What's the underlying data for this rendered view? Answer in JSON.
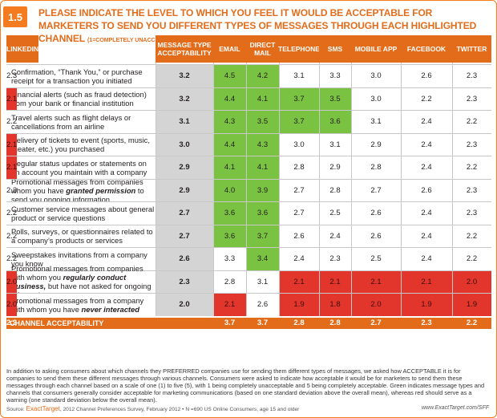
{
  "figure": {
    "number": "1.5",
    "title": "PLEASE INDICATE THE LEVEL TO WHICH YOU FEEL IT WOULD BE ACCEPTABLE FOR MARKETERS TO SEND YOU DIFFERENT TYPES OF MESSAGES THROUGH EACH HIGHLIGHTED CHANNEL",
    "scale_note": "(1=COMPLETELY UNACCEPTABLE, 5=COMPLETELY ACCEPTABLE)"
  },
  "colors": {
    "accent": "#e36c1a",
    "green": "#79c242",
    "red": "#e2352c",
    "gray": "#d4d4d4"
  },
  "chart_data": {
    "type": "table",
    "columns": [
      "MESSAGE TYPE ACCEPTABILITY",
      "EMAIL",
      "DIRECT MAIL",
      "TELEPHONE",
      "SMS",
      "MOBILE APP",
      "FACEBOOK",
      "TWITTER",
      "LINKEDIN"
    ],
    "rows": [
      {
        "label_parts": [
          {
            "t": "Confirmation, “Thank You,” or purchase receipt for a transaction you initiated"
          }
        ],
        "values": [
          "3.2",
          "4.5",
          "4.2",
          "3.1",
          "3.3",
          "3.0",
          "2.6",
          "2.3",
          "2.3"
        ],
        "status": [
          "acc",
          "green",
          "green",
          "",
          "",
          "",
          "",
          "",
          ""
        ]
      },
      {
        "label_parts": [
          {
            "t": "Financial alerts (such as fraud detection) from your bank or financial institution"
          }
        ],
        "values": [
          "3.2",
          "4.4",
          "4.1",
          "3.7",
          "3.5",
          "3.0",
          "2.2",
          "2.3",
          "2.1"
        ],
        "status": [
          "acc",
          "green",
          "green",
          "green",
          "green",
          "",
          "",
          "",
          "red"
        ]
      },
      {
        "label_parts": [
          {
            "t": "Travel alerts such as flight delays or cancellations from an airline"
          }
        ],
        "values": [
          "3.1",
          "4.3",
          "3.5",
          "3.7",
          "3.6",
          "3.1",
          "2.4",
          "2.2",
          "2.2"
        ],
        "status": [
          "acc",
          "green",
          "green",
          "green",
          "green",
          "",
          "",
          "",
          ""
        ]
      },
      {
        "label_parts": [
          {
            "t": "Delivery of tickets to event (sports, music, theater, etc.) you purchased"
          }
        ],
        "values": [
          "3.0",
          "4.4",
          "4.3",
          "3.0",
          "3.1",
          "2.9",
          "2.4",
          "2.3",
          "2.1"
        ],
        "status": [
          "acc",
          "green",
          "green",
          "",
          "",
          "",
          "",
          "",
          "red"
        ]
      },
      {
        "label_parts": [
          {
            "t": "Regular status updates or statements on an account you maintain with a company"
          }
        ],
        "values": [
          "2.9",
          "4.1",
          "4.1",
          "2.8",
          "2.9",
          "2.8",
          "2.4",
          "2.2",
          "2.1"
        ],
        "status": [
          "acc",
          "green",
          "green",
          "",
          "",
          "",
          "",
          "",
          "red"
        ]
      },
      {
        "label_parts": [
          {
            "t": "Promotional messages from companies whom you have "
          },
          {
            "t": "granted permission",
            "b": true
          },
          {
            "t": " to send you ongoing information"
          }
        ],
        "values": [
          "2.9",
          "4.0",
          "3.9",
          "2.7",
          "2.8",
          "2.7",
          "2.6",
          "2.3",
          "2.3"
        ],
        "status": [
          "acc",
          "green",
          "green",
          "",
          "",
          "",
          "",
          "",
          ""
        ]
      },
      {
        "label_parts": [
          {
            "t": "Customer service messages about general product or service questions"
          }
        ],
        "values": [
          "2.7",
          "3.6",
          "3.6",
          "2.7",
          "2.5",
          "2.6",
          "2.4",
          "2.3",
          "2.2"
        ],
        "status": [
          "acc",
          "green",
          "green",
          "",
          "",
          "",
          "",
          "",
          ""
        ]
      },
      {
        "label_parts": [
          {
            "t": "Polls, surveys, or questionnaires related to a company’s products or services"
          }
        ],
        "values": [
          "2.7",
          "3.6",
          "3.7",
          "2.6",
          "2.4",
          "2.6",
          "2.4",
          "2.2",
          "2.2"
        ],
        "status": [
          "acc",
          "green",
          "green",
          "",
          "",
          "",
          "",
          "",
          ""
        ]
      },
      {
        "label_parts": [
          {
            "t": "Sweepstakes invitations from a company you know"
          }
        ],
        "values": [
          "2.6",
          "3.3",
          "3.4",
          "2.4",
          "2.3",
          "2.5",
          "2.4",
          "2.2",
          "2.2"
        ],
        "status": [
          "acc",
          "",
          "green",
          "",
          "",
          "",
          "",
          "",
          ""
        ]
      },
      {
        "label_parts": [
          {
            "t": "Promotional messages from companies with whom you "
          },
          {
            "t": "regularly conduct business,",
            "b": true
          },
          {
            "t": " but have not asked for ongoing information"
          }
        ],
        "values": [
          "2.3",
          "2.8",
          "3.1",
          "2.1",
          "2.1",
          "2.1",
          "2.1",
          "2.0",
          "2.0"
        ],
        "status": [
          "acc",
          "",
          "",
          "red",
          "red",
          "red",
          "red",
          "red",
          "red"
        ]
      },
      {
        "label_parts": [
          {
            "t": "Promotional messages from a company with whom you have "
          },
          {
            "t": "never interacted",
            "b": true
          }
        ],
        "values": [
          "2.0",
          "2.1",
          "2.6",
          "1.9",
          "1.8",
          "2.0",
          "1.9",
          "1.9",
          "2.0"
        ],
        "status": [
          "acc",
          "red",
          "",
          "red",
          "red",
          "red",
          "red",
          "red",
          "red"
        ]
      }
    ],
    "footer": {
      "label": "CHANNEL ACCEPTABILITY",
      "values": [
        "3.7",
        "3.7",
        "2.8",
        "2.8",
        "2.7",
        "2.3",
        "2.2",
        "2.2"
      ]
    }
  },
  "notes": "In addition to asking consumers about which channels they PREFERRED companies use for sending them different types of messages, we asked how ACCEPTABLE it is for companies to send them these different messages through various channels. Consumers were asked to indicate how acceptable it would be for marketers to send them these messages through each channel based on a scale of one (1) to five (5), with 1 being completely unacceptable and 5 being completely acceptable. Green indicates message types and channels that consumers generally consider acceptable for marketing communications (based on one standard deviation above the overall mean), whereas red should serve as a warning (one standard deviation below the overall mean).",
  "source": {
    "prefix": "Source:",
    "brand": "ExactTarget",
    "text": ", 2012 Channel Preferences Survey, February 2012  •  N =690  US Online Consumers, age 15 and older",
    "url": "www.ExactTarget.com/SFF"
  }
}
